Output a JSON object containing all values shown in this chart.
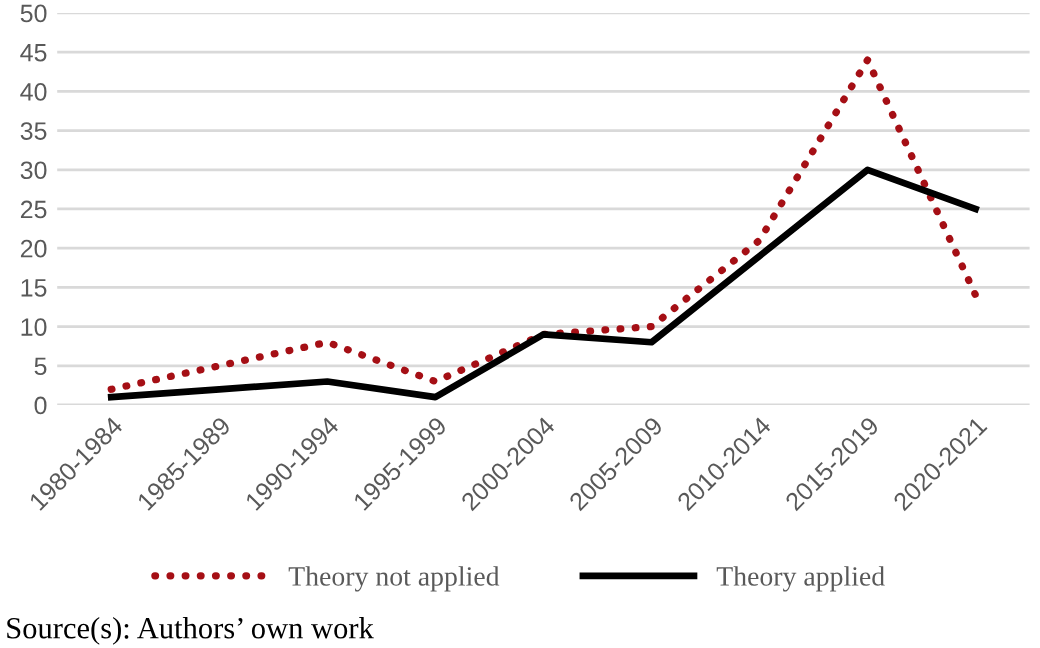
{
  "chart_data": {
    "type": "line",
    "categories": [
      "1980-1984",
      "1985-1989",
      "1990-1994",
      "1995-1999",
      "2000-2004",
      "2005-2009",
      "2010-2014",
      "2015-2019",
      "2020-2021"
    ],
    "series": [
      {
        "name": "Theory not applied",
        "color": "#a50f15",
        "line_style": "dotted",
        "values": [
          2,
          5,
          8,
          3,
          9,
          10,
          21,
          44,
          14
        ]
      },
      {
        "name": "Theory applied",
        "color": "#000000",
        "line_style": "solid",
        "values": [
          1,
          2,
          3,
          1,
          9,
          8,
          19,
          30,
          25
        ]
      }
    ],
    "ylim": [
      0,
      50
    ],
    "yticks": [
      0,
      5,
      10,
      15,
      20,
      25,
      30,
      35,
      40,
      45,
      50
    ],
    "grid": "y",
    "legend": "bottom",
    "marker": "none",
    "annotations": [
      "Source(s): Authors’ own work"
    ]
  }
}
